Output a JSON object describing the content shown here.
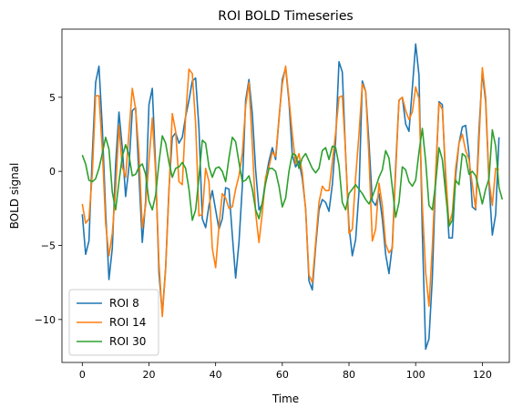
{
  "chart_data": {
    "type": "line",
    "title": "ROI BOLD Timeseries",
    "xlabel": "Time",
    "ylabel": "BOLD signal",
    "xlim": [
      -6.1,
      128.1
    ],
    "ylim": [
      -12.9,
      9.6
    ],
    "xticks": [
      0,
      20,
      40,
      60,
      80,
      100,
      120
    ],
    "yticks": [
      -10,
      -5,
      0,
      5
    ],
    "grid": false,
    "legend_position": "lower-left",
    "series": [
      {
        "name": "ROI 8",
        "color": "#1f77b4",
        "values": [
          -2.9,
          -5.6,
          -4.7,
          1.1,
          6.0,
          7.1,
          3.0,
          -2.7,
          -7.3,
          -5.2,
          0.5,
          4.0,
          1.6,
          -1.7,
          0.3,
          4.1,
          4.3,
          -0.3,
          -4.8,
          -2.0,
          4.5,
          5.6,
          0.3,
          -6.9,
          -9.6,
          -6.5,
          -1.2,
          2.3,
          2.6,
          1.9,
          2.3,
          3.7,
          4.8,
          6.1,
          6.3,
          2.9,
          -3.2,
          -3.8,
          -2.3,
          -1.3,
          -2.6,
          -3.9,
          -3.2,
          -1.1,
          -1.2,
          -4.3,
          -7.2,
          -4.8,
          -1.0,
          4.8,
          6.2,
          3.9,
          0.1,
          -2.6,
          -2.2,
          -0.5,
          0.7,
          1.6,
          0.8,
          3.5,
          6.2,
          7.0,
          4.7,
          1.1,
          0.3,
          0.7,
          -0.5,
          -2.5,
          -7.4,
          -8.0,
          -5.1,
          -2.6,
          -1.9,
          -2.1,
          -2.7,
          -0.9,
          2.1,
          7.4,
          6.7,
          1.1,
          -3.7,
          -5.7,
          -4.6,
          -1.4,
          6.1,
          5.4,
          1.9,
          -2.0,
          -2.3,
          -1.5,
          -3.2,
          -5.6,
          -6.9,
          -5.0,
          0.3,
          4.8,
          5.0,
          3.2,
          2.7,
          5.6,
          8.6,
          6.5,
          -4.1,
          -12.0,
          -11.3,
          -7.2,
          -0.4,
          4.7,
          4.5,
          -0.6,
          -4.5,
          -4.5,
          -0.3,
          1.9,
          3.0,
          3.1,
          1.2,
          -2.4,
          -2.6,
          2.8,
          6.7,
          4.7,
          -0.8,
          -4.3,
          -2.9,
          2.3
        ]
      },
      {
        "name": "ROI 14",
        "color": "#ff7f0e",
        "values": [
          -2.2,
          -3.5,
          -3.2,
          -0.2,
          5.1,
          5.1,
          1.5,
          -3.5,
          -5.7,
          -4.2,
          -1.2,
          3.1,
          0.3,
          -0.4,
          2.6,
          5.6,
          4.2,
          1.2,
          -3.8,
          -2.3,
          0.7,
          3.6,
          -0.1,
          -6.2,
          -9.8,
          -6.6,
          -1.4,
          3.9,
          2.7,
          -0.7,
          -0.9,
          3.7,
          6.9,
          6.6,
          3.2,
          -3.0,
          -2.9,
          0.2,
          -0.7,
          -5.2,
          -6.5,
          -3.7,
          -1.5,
          -1.8,
          -2.5,
          -2.4,
          -1.2,
          -0.3,
          1.2,
          4.4,
          6.0,
          1.8,
          -2.8,
          -4.8,
          -2.8,
          -0.4,
          0.3,
          1.3,
          1.0,
          3.6,
          5.9,
          7.1,
          4.9,
          2.5,
          0.5,
          1.2,
          -0.1,
          -2.6,
          -7.0,
          -7.5,
          -4.8,
          -2.1,
          -1.0,
          -1.3,
          -1.3,
          0.6,
          2.6,
          5.0,
          5.1,
          1.2,
          -4.2,
          -3.9,
          -0.4,
          2.5,
          5.9,
          5.4,
          0.9,
          -4.7,
          -3.9,
          -0.8,
          -2.3,
          -4.9,
          -5.5,
          -5.2,
          -0.1,
          4.8,
          5.0,
          4.1,
          3.5,
          4.0,
          5.7,
          4.9,
          -2.3,
          -6.8,
          -9.1,
          -5.1,
          -0.1,
          4.6,
          4.2,
          -0.1,
          -3.6,
          -2.8,
          0.2,
          1.9,
          2.5,
          1.4,
          0.8,
          -0.9,
          -2.5,
          2.0,
          7.0,
          5.0,
          -0.6,
          -2.3,
          0.2,
          0.1
        ]
      },
      {
        "name": "ROI 30",
        "color": "#2ca02c",
        "values": [
          1.1,
          0.5,
          -0.6,
          -0.7,
          -0.5,
          0.2,
          1.2,
          2.3,
          1.5,
          -1.4,
          -2.6,
          -0.7,
          1.0,
          1.8,
          1.1,
          -0.3,
          -0.2,
          0.3,
          0.5,
          -0.2,
          -2.0,
          -2.6,
          -1.6,
          0.6,
          2.4,
          1.9,
          0.6,
          -0.4,
          0.2,
          0.3,
          0.6,
          0.2,
          -1.2,
          -3.3,
          -2.6,
          -0.4,
          2.1,
          1.9,
          0.3,
          -0.4,
          0.2,
          0.3,
          0.0,
          -0.7,
          0.9,
          2.3,
          2.0,
          0.6,
          -0.7,
          -0.6,
          -0.3,
          -1.2,
          -2.6,
          -3.2,
          -2.1,
          -0.8,
          0.2,
          0.2,
          0.0,
          -1.0,
          -2.4,
          -1.8,
          0.0,
          1.2,
          1.1,
          0.2,
          0.9,
          1.2,
          0.7,
          0.2,
          -0.1,
          0.2,
          1.4,
          1.6,
          0.8,
          1.7,
          1.6,
          0.4,
          -2.1,
          -2.6,
          -1.5,
          -1.2,
          -0.9,
          -1.2,
          -1.5,
          -1.9,
          -2.2,
          -1.7,
          -1.1,
          -0.4,
          0.1,
          1.4,
          0.9,
          -1.1,
          -3.1,
          -2.1,
          0.3,
          0.1,
          -0.7,
          -1.0,
          -0.6,
          1.3,
          2.9,
          0.7,
          -2.3,
          -2.6,
          -0.8,
          1.6,
          0.8,
          -1.5,
          -3.7,
          -3.3,
          -0.6,
          -0.9,
          1.2,
          1.0,
          -0.2,
          0.0,
          -0.3,
          -1.2,
          -2.2,
          -1.2,
          -0.5,
          2.8,
          1.7,
          -1.1,
          -1.9
        ]
      }
    ]
  }
}
